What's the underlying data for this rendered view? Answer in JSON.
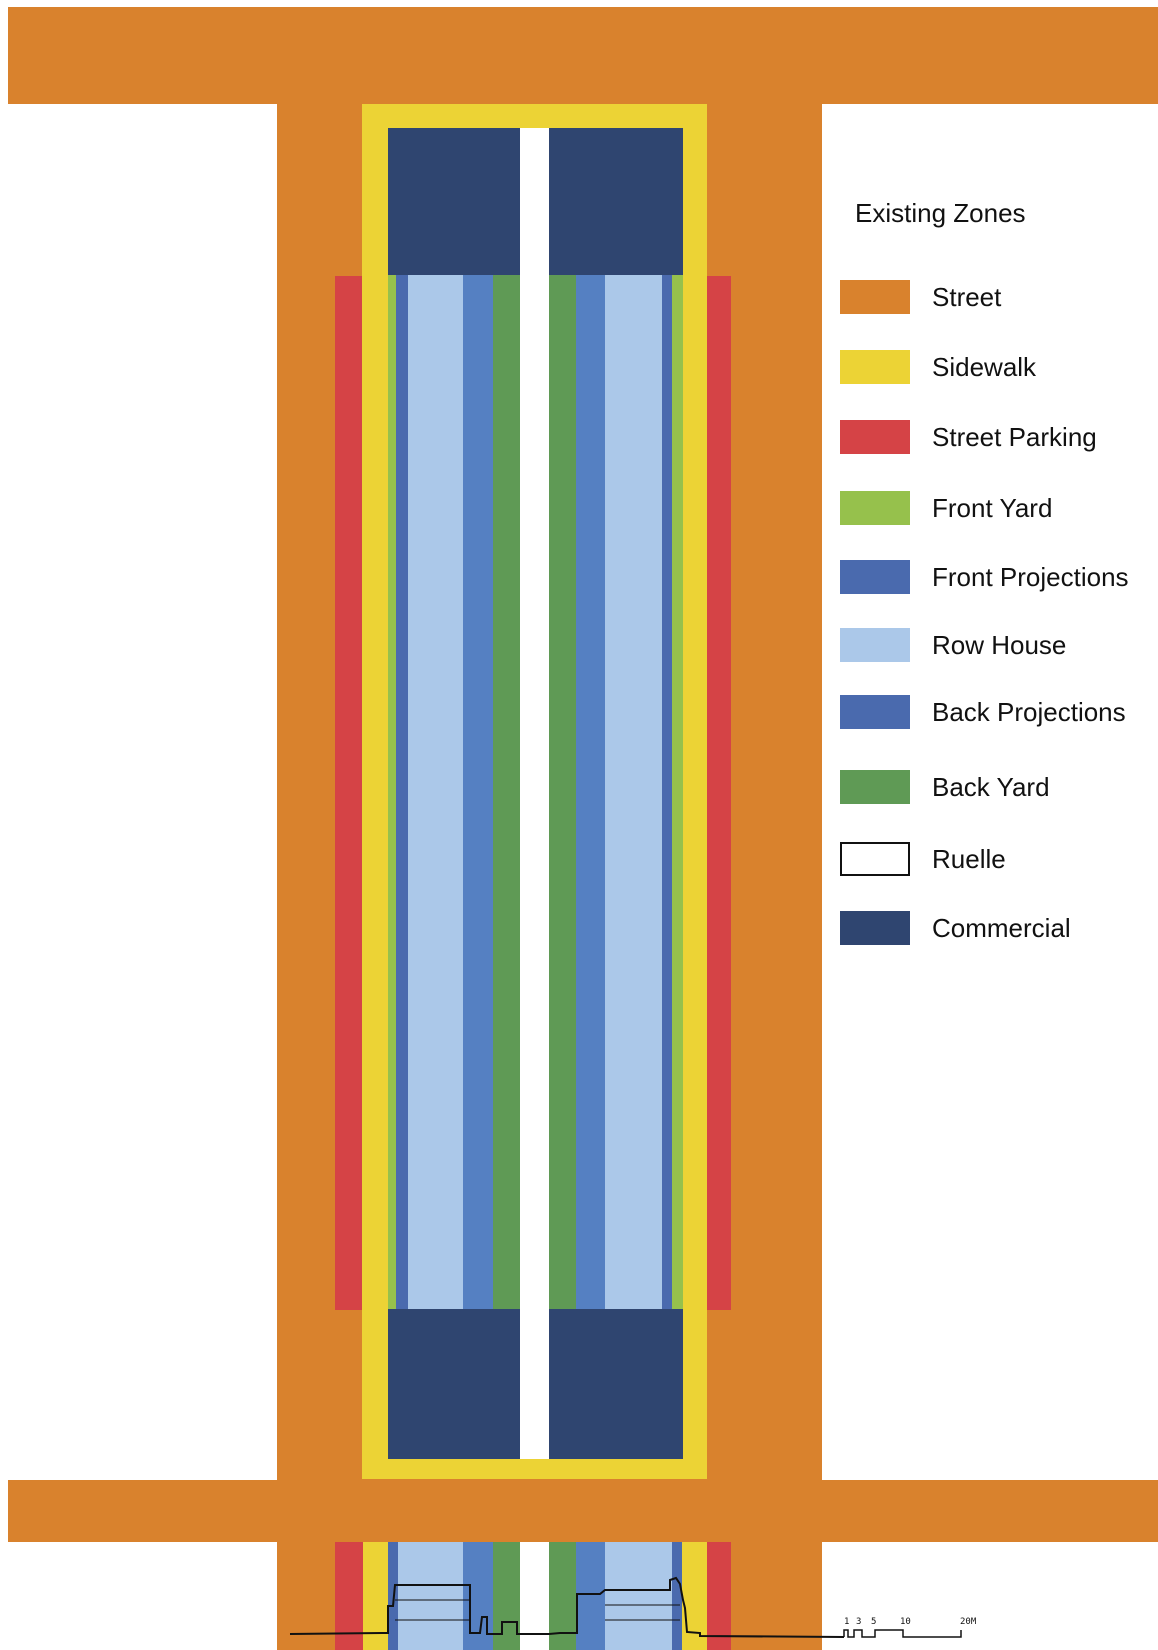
{
  "legend": {
    "title": "Existing Zones",
    "items": [
      {
        "label": "Street",
        "color": "#d9822d",
        "key": "street"
      },
      {
        "label": "Sidewalk",
        "color": "#ecd335",
        "key": "sidewalk"
      },
      {
        "label": "Street Parking",
        "color": "#d54346",
        "key": "street-parking"
      },
      {
        "label": "Front Yard",
        "color": "#96c14c",
        "key": "front-yard"
      },
      {
        "label": "Front Projections",
        "color": "#4a6aae",
        "key": "front-projections"
      },
      {
        "label": "Row House",
        "color": "#abc8e9",
        "key": "row-house"
      },
      {
        "label": "Back Projections",
        "color": "#4a6aae",
        "key": "back-projections"
      },
      {
        "label": "Back Yard",
        "color": "#5f9a55",
        "key": "back-yard"
      },
      {
        "label": "Ruelle",
        "color": "#ffffff",
        "key": "ruelle"
      },
      {
        "label": "Commercial",
        "color": "#2f4570",
        "key": "commercial"
      }
    ]
  },
  "scale_bar": {
    "ticks": [
      "1",
      "3",
      "5",
      "10",
      "20M"
    ]
  },
  "colors": {
    "back_projections_plan": "#5580c2",
    "outline": "#111111"
  }
}
